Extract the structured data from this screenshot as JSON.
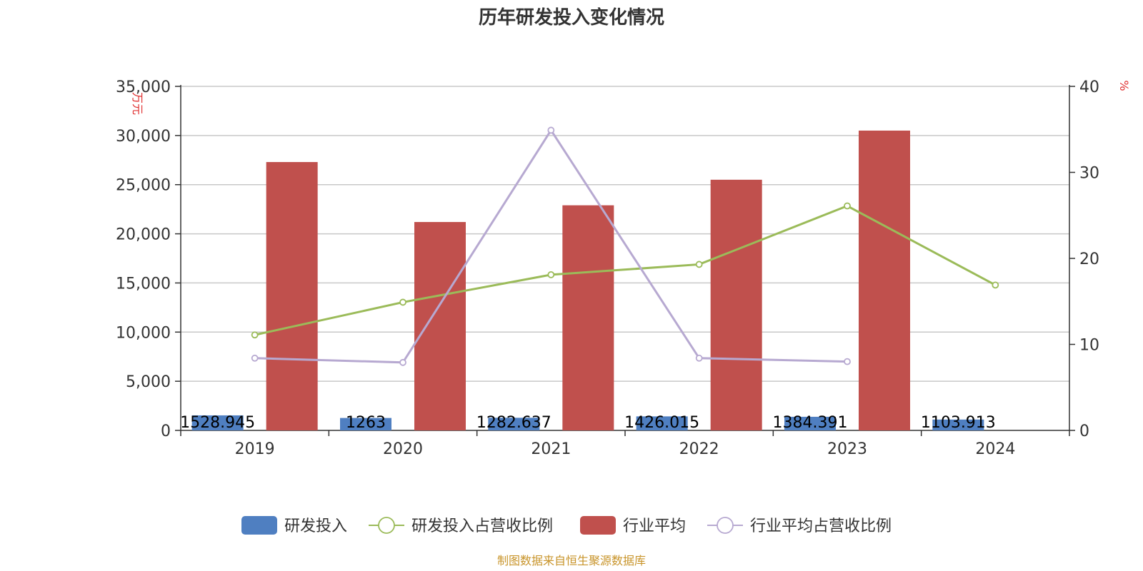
{
  "chart_data": {
    "type": "bar",
    "title": "历年研发投入变化情况",
    "categories": [
      "2019",
      "2020",
      "2021",
      "2022",
      "2023",
      "2024"
    ],
    "y_left": {
      "label": "万元",
      "ylim": [
        0,
        35000
      ],
      "ticks": [
        0,
        5000,
        10000,
        15000,
        20000,
        25000,
        30000,
        35000
      ],
      "tick_labels": [
        "0",
        "5,000",
        "10,000",
        "15,000",
        "20,000",
        "25,000",
        "30,000",
        "35,000"
      ]
    },
    "y_right": {
      "label": "%",
      "ylim": [
        0,
        40
      ],
      "ticks": [
        0,
        10,
        20,
        30,
        40
      ],
      "tick_labels": [
        "0",
        "10",
        "20",
        "30",
        "40"
      ]
    },
    "grid": true,
    "legend_position": "bottom",
    "series": [
      {
        "name": "研发投入",
        "type": "bar",
        "axis": "left",
        "color": "#4f7fc1",
        "values": [
          1528.945,
          1263,
          1282.637,
          1426.015,
          1384.391,
          1103.913
        ],
        "labels": [
          "1528.945",
          "1263",
          "1282.637",
          "1426.015",
          "1384.391",
          "1103.913"
        ]
      },
      {
        "name": "研发投入占营收比例",
        "type": "line",
        "axis": "right",
        "color": "#9bbb59",
        "values": [
          11.1,
          14.9,
          18.1,
          19.3,
          26.1,
          16.9
        ]
      },
      {
        "name": "行业平均",
        "type": "bar",
        "axis": "left",
        "color": "#c0504d",
        "values": [
          27300,
          21200,
          22900,
          25500,
          30500,
          null
        ]
      },
      {
        "name": "行业平均占营收比例",
        "type": "line",
        "axis": "right",
        "color": "#b7a9d1",
        "values": [
          8.4,
          7.9,
          34.9,
          8.4,
          8.0,
          null
        ]
      }
    ],
    "source": "制图数据来自恒生聚源数据库"
  }
}
